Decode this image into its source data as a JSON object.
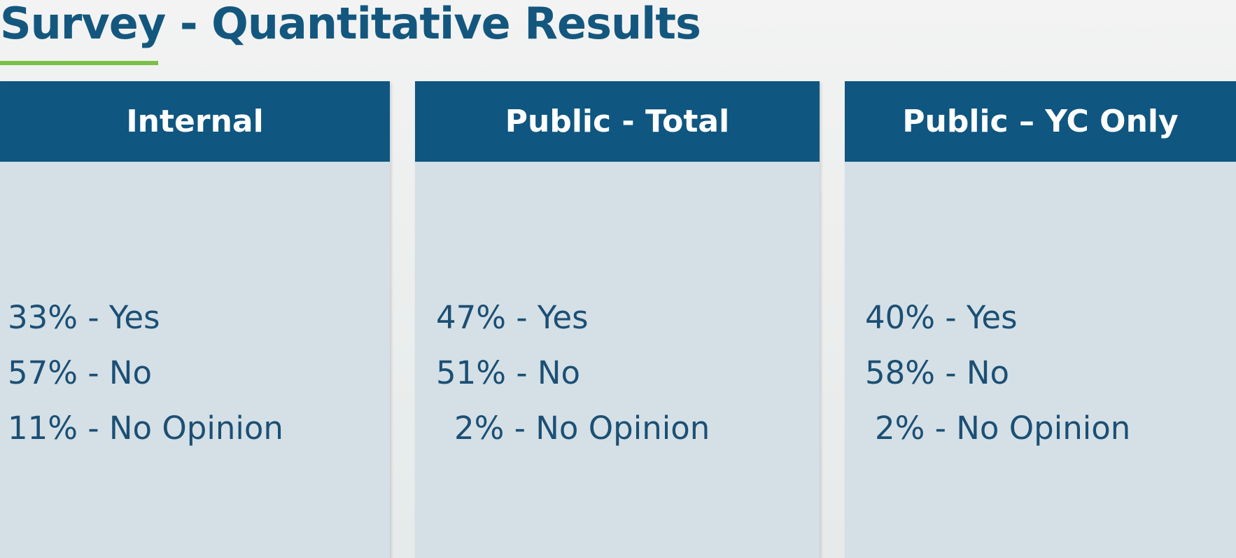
{
  "header": {
    "title": "Survey - Quantitative Results"
  },
  "columns": [
    {
      "heading": "Internal",
      "lines": [
        "33% - Yes",
        "57% - No",
        "11% - No Opinion"
      ]
    },
    {
      "heading": "Public - Total",
      "lines": [
        "47% - Yes",
        "51% - No",
        "2% - No Opinion"
      ]
    },
    {
      "heading": "Public – YC Only",
      "lines": [
        "40% - Yes",
        "58% - No",
        "2% - No Opinion"
      ]
    }
  ]
}
